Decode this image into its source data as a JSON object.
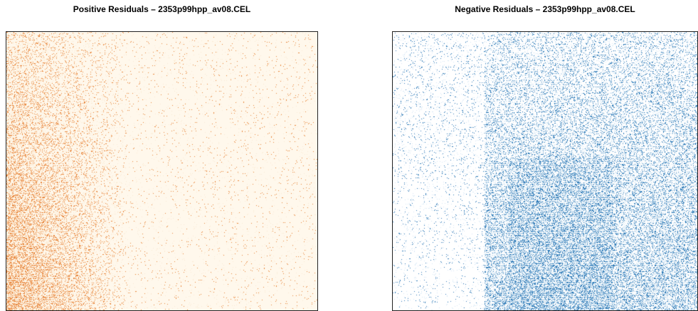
{
  "panels": [
    {
      "id": "positive",
      "title": "Positive Residuals – 2353p99hpp_av08.CEL",
      "color_strong": "#e8853a",
      "color_light": "#fdebd3",
      "background": "#fff8ec"
    },
    {
      "id": "negative",
      "title": "Negative Residuals – 2353p99hpp_av08.CEL",
      "color_strong": "#2f7bb8",
      "color_light": "#d6e8f5",
      "background": "#ffffff"
    }
  ]
}
